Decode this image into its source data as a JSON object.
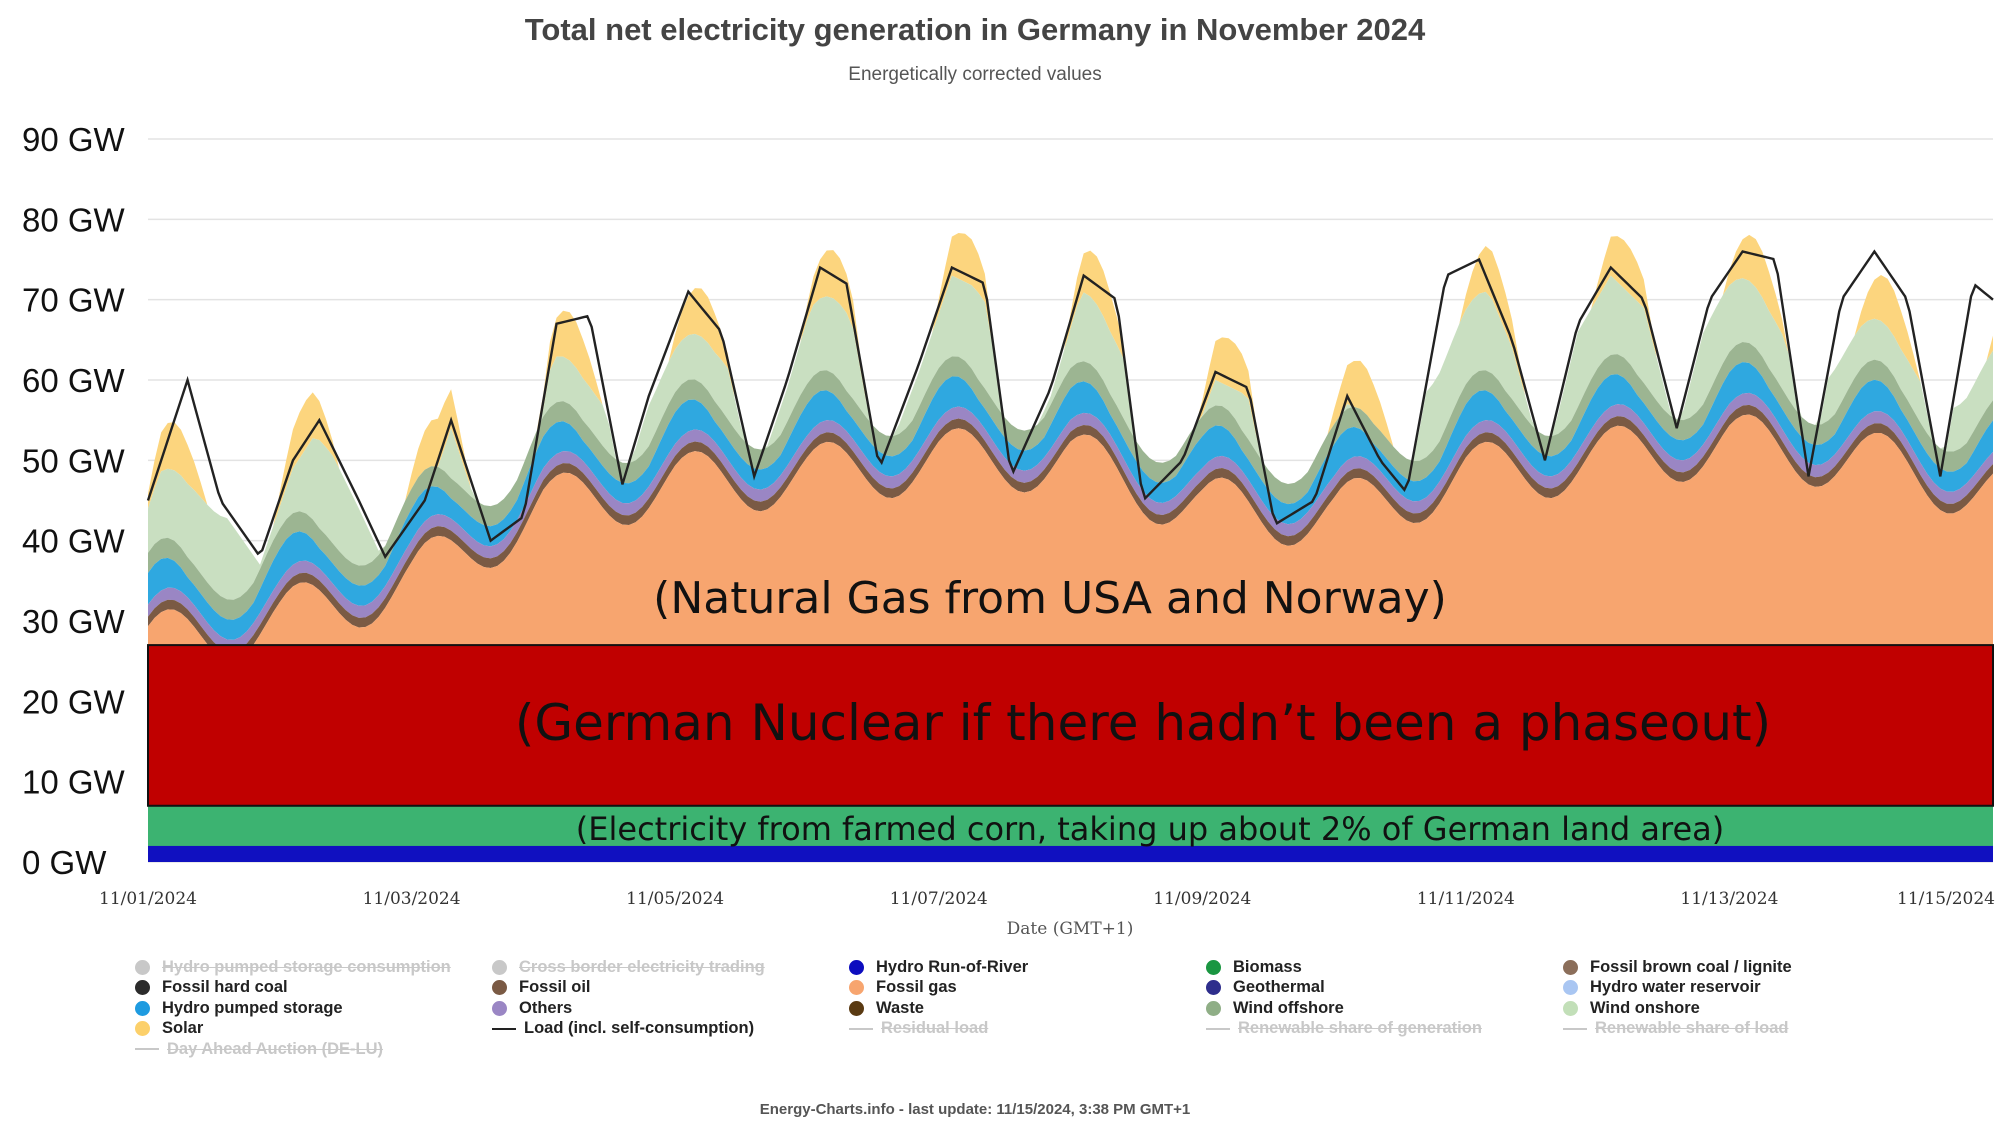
{
  "chart_data": {
    "type": "area",
    "title": "Total net electricity generation in Germany in November 2024",
    "subtitle": "Energetically corrected values",
    "xlabel": "Date (GMT+1)",
    "ylabel": "",
    "ylim": [
      0,
      90
    ],
    "yticks": [
      "0 GW",
      "10 GW",
      "20 GW",
      "30 GW",
      "40 GW",
      "50 GW",
      "60 GW",
      "70 GW",
      "80 GW",
      "90 GW"
    ],
    "xticks": [
      "11/01/2024",
      "11/03/2024",
      "11/05/2024",
      "11/07/2024",
      "11/09/2024",
      "11/11/2024",
      "11/13/2024",
      "11/15/2024"
    ],
    "x_range_days": [
      0,
      14
    ],
    "grid": true,
    "overlays": [
      {
        "label": "(German Nuclear if there hadn’t been a phaseout)",
        "y_range": [
          7,
          27
        ],
        "color": "#c00000"
      },
      {
        "label": "(Natural Gas from USA and Norway)",
        "color": "#f5a878"
      },
      {
        "label": "(Electricity from farmed corn, taking up about 2% of German land area)",
        "y_range": [
          0,
          7
        ],
        "color": "#3cb371"
      }
    ],
    "series": [
      {
        "name": "Hydro Run-of-River",
        "color": "#1010c0",
        "values": [
          2,
          2,
          2,
          2,
          2,
          2,
          2,
          2,
          2,
          2,
          2,
          2,
          2,
          2,
          2
        ]
      },
      {
        "name": "Biomass",
        "color": "#3cb371",
        "values": [
          4.5,
          4.5,
          4.5,
          4.5,
          4.5,
          4.5,
          4.5,
          4.5,
          4.5,
          4.5,
          4.5,
          4.5,
          4.5,
          4.5,
          4.5
        ]
      },
      {
        "name": "Fossil gas",
        "color": "#f7a56f",
        "note": "top of fossil gas area over time (GW)",
        "values": [
          27,
          30,
          35,
          44,
          47,
          48,
          50,
          50,
          44,
          43,
          48,
          50,
          52,
          50,
          46
        ]
      },
      {
        "name": "Hydro pumped storage",
        "color": "#2fa8e0"
      },
      {
        "name": "Others",
        "color": "#9a86c4"
      },
      {
        "name": "Wind offshore",
        "color": "#9cb592"
      },
      {
        "name": "Wind onshore",
        "color": "#c9dfc1"
      },
      {
        "name": "Solar",
        "color": "#fcd57e"
      },
      {
        "name": "Load (incl. self-consumption)",
        "color": "#222222",
        "x": [
          0,
          0.3,
          0.55,
          0.85,
          1.1,
          1.3,
          1.6,
          1.8,
          2.1,
          2.3,
          2.6,
          2.85,
          3.1,
          3.35,
          3.6,
          3.8,
          4.1,
          4.35,
          4.6,
          4.85,
          5.1,
          5.3,
          5.55,
          5.85,
          6.1,
          6.35,
          6.55,
          6.85,
          7.1,
          7.35,
          7.55,
          7.85,
          8.1,
          8.35,
          8.55,
          8.85,
          9.1,
          9.35,
          9.55,
          9.85,
          10.1,
          10.35,
          10.6,
          10.85,
          11.1,
          11.35,
          11.6,
          11.85,
          12.1,
          12.35,
          12.6,
          12.85,
          13.1,
          13.35,
          13.6,
          13.85,
          14
        ],
        "values": [
          45,
          60,
          45,
          38,
          50,
          55,
          45,
          38,
          45,
          55,
          40,
          43,
          67,
          68,
          47,
          58,
          71,
          66,
          48,
          60,
          74,
          72,
          49,
          62,
          74,
          72,
          48,
          59,
          73,
          70,
          45,
          50,
          61,
          59,
          42,
          45,
          58,
          50,
          46,
          73,
          75,
          65,
          50,
          67,
          74,
          70,
          54,
          70,
          76,
          75,
          48,
          70,
          76,
          70,
          48,
          72,
          70
        ]
      }
    ],
    "legend": {
      "placement": "bottom",
      "items": [
        {
          "label": "Hydro pumped storage consumption",
          "kind": "dot",
          "color": "#c8c8c8",
          "hidden": true
        },
        {
          "label": "Cross border electricity trading",
          "kind": "dot",
          "color": "#c8c8c8",
          "hidden": true
        },
        {
          "label": "Hydro Run-of-River",
          "kind": "dot",
          "color": "#0d0dbf",
          "hidden": false
        },
        {
          "label": "Biomass",
          "kind": "dot",
          "color": "#1a9641",
          "hidden": false
        },
        {
          "label": "Fossil brown coal / lignite",
          "kind": "dot",
          "color": "#8b6e5a",
          "hidden": false
        },
        {
          "label": "Fossil hard coal",
          "kind": "dot",
          "color": "#2b2b2b",
          "hidden": false
        },
        {
          "label": "Fossil oil",
          "kind": "dot",
          "color": "#7a5a44",
          "hidden": false
        },
        {
          "label": "Fossil gas",
          "kind": "dot",
          "color": "#f7a56f",
          "hidden": false
        },
        {
          "label": "Geothermal",
          "kind": "dot",
          "color": "#2e2e8c",
          "hidden": false
        },
        {
          "label": "Hydro water reservoir",
          "kind": "dot",
          "color": "#a9c6f2",
          "hidden": false
        },
        {
          "label": "Hydro pumped storage",
          "kind": "dot",
          "color": "#1e9be0",
          "hidden": false
        },
        {
          "label": "Others",
          "kind": "dot",
          "color": "#9a86c4",
          "hidden": false
        },
        {
          "label": "Waste",
          "kind": "dot",
          "color": "#5a3a12",
          "hidden": false
        },
        {
          "label": "Wind offshore",
          "kind": "dot",
          "color": "#8fae86",
          "hidden": false
        },
        {
          "label": "Wind onshore",
          "kind": "dot",
          "color": "#c2dfb8",
          "hidden": false
        },
        {
          "label": "Solar",
          "kind": "dot",
          "color": "#fcd06a",
          "hidden": false
        },
        {
          "label": "Load (incl. self-consumption)",
          "kind": "line",
          "color": "#222222",
          "hidden": false
        },
        {
          "label": "Residual load",
          "kind": "line",
          "color": "#c8c8c8",
          "hidden": true
        },
        {
          "label": "Renewable share of generation",
          "kind": "line",
          "color": "#c8c8c8",
          "hidden": true
        },
        {
          "label": "Renewable share of load",
          "kind": "line",
          "color": "#c8c8c8",
          "hidden": true
        },
        {
          "label": "Day Ahead Auction (DE-LU)",
          "kind": "line",
          "color": "#c8c8c8",
          "hidden": true
        }
      ]
    }
  },
  "footer": "Energy-Charts.info - last update: 11/15/2024, 3:38 PM GMT+1"
}
